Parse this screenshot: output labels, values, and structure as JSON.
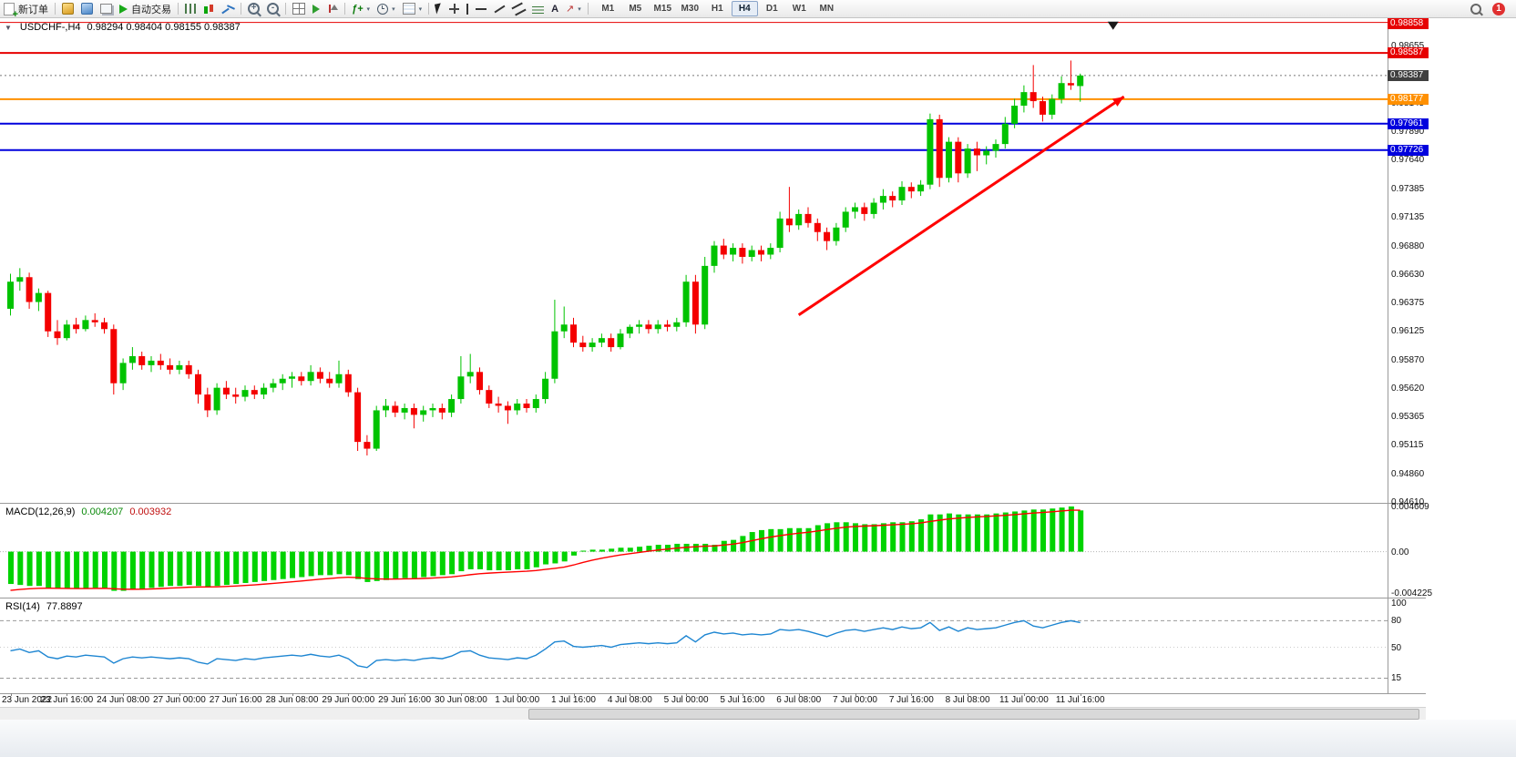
{
  "toolbar": {
    "new_order": "新订单",
    "autotrading": "自动交易",
    "timeframes": [
      "M1",
      "M5",
      "M15",
      "M30",
      "H1",
      "H4",
      "D1",
      "W1",
      "MN"
    ],
    "active_timeframe": "H4",
    "notification_badge": "1"
  },
  "icons": {
    "new-order-icon": "document-plus",
    "new-chart-icon": "gold-chart",
    "profiles-icon": "blue-chart",
    "terminal-icon": "windows",
    "autotrading-play-icon": "green-play-triangle",
    "chart-bars-icon": "vertical-bars",
    "chart-candles-icon": "two-candles",
    "chart-line-icon": "zigzag-line",
    "zoom-in-icon": "magnifier-plus",
    "zoom-out-icon": "magnifier-minus",
    "tile-windows-icon": "grid",
    "auto-scroll-icon": "green-arrow-right",
    "chart-shift-icon": "triangle-with-line",
    "indicators-icon": "fx-plus",
    "periods-icon": "clock",
    "templates-icon": "striped-panel",
    "cursor-icon": "pointer-arrow",
    "crosshair-icon": "cross",
    "vertical-line-icon": "vertical-bar",
    "horizontal-line-icon": "horizontal-bar",
    "trendline-icon": "diagonal-line",
    "channel-icon": "parallel-lines",
    "fibonacci-icon": "stacked-lines",
    "text-icon": "letter-A",
    "arrows-icon": "arrow-glyph",
    "search-icon": "magnifier",
    "notification-icon": "red-circle-badge",
    "one-click-trading-icon": "down-triangle",
    "down-triangle-marker": "black-down-triangle"
  },
  "chart_data": {
    "type": "candlestick",
    "symbol": "USDCHF-",
    "timeframe": "H4",
    "header": {
      "symbol": "USDCHF-,H4",
      "ohlc": "0.98294 0.98404 0.98155 0.98387"
    },
    "current_bar": {
      "open": 0.98294,
      "high": 0.98404,
      "low": 0.98155,
      "close": 0.98387
    },
    "bull_color": "#00c300",
    "bear_color": "#f40000",
    "price_axis": {
      "max": 0.98895,
      "min": 0.946,
      "labels": [
        "0.98655",
        "0.98400",
        "0.98145",
        "0.97890",
        "0.97640",
        "0.97385",
        "0.97135",
        "0.96880",
        "0.96630",
        "0.96375",
        "0.96125",
        "0.95870",
        "0.95620",
        "0.95365",
        "0.95115",
        "0.94860",
        "0.94610"
      ]
    },
    "levels": [
      {
        "price": 0.98858,
        "label": "0.98858",
        "color": "#e60000",
        "width": 1,
        "style": "solid",
        "tag": "#e60000",
        "obj": true
      },
      {
        "price": 0.98587,
        "label": "0.98587",
        "color": "#e60000",
        "width": 2,
        "style": "solid",
        "tag": "#e60000",
        "obj": true
      },
      {
        "price": 0.98387,
        "label": "0.98387",
        "color": "#777777",
        "width": 1,
        "style": "dotted",
        "tag": "#3f3f3f",
        "obj": false
      },
      {
        "price": 0.98177,
        "label": "0.98177",
        "color": "#ff9000",
        "width": 2,
        "style": "solid",
        "tag": "#ff9000",
        "obj": true
      },
      {
        "price": 0.97961,
        "label": "0.97961",
        "color": "#0000dd",
        "width": 2,
        "style": "solid",
        "tag": "#0000dd",
        "obj": true
      },
      {
        "price": 0.97726,
        "label": "0.97726",
        "color": "#0000dd",
        "width": 2,
        "style": "solid",
        "tag": "#0000dd",
        "obj": true
      }
    ],
    "time_labels": [
      "23 Jun 2022",
      "23 Jun 16:00",
      "24 Jun 08:00",
      "27 Jun 00:00",
      "27 Jun 16:00",
      "28 Jun 08:00",
      "29 Jun 00:00",
      "29 Jun 16:00",
      "30 Jun 08:00",
      "1 Jul 00:00",
      "1 Jul 16:00",
      "4 Jul 08:00",
      "5 Jul 00:00",
      "5 Jul 16:00",
      "6 Jul 08:00",
      "7 Jul 00:00",
      "7 Jul 16:00",
      "8 Jul 08:00",
      "11 Jul 00:00",
      "11 Jul 16:00"
    ],
    "bars_per_label": 6,
    "candles": [
      [
        0.9632,
        0.9663,
        0.9626,
        0.9656
      ],
      [
        0.9656,
        0.9668,
        0.9648,
        0.966
      ],
      [
        0.966,
        0.9664,
        0.9632,
        0.9638
      ],
      [
        0.9638,
        0.965,
        0.963,
        0.9646
      ],
      [
        0.9646,
        0.9648,
        0.9607,
        0.9612
      ],
      [
        0.9612,
        0.9622,
        0.96,
        0.9606
      ],
      [
        0.9606,
        0.9622,
        0.9604,
        0.9618
      ],
      [
        0.9618,
        0.9624,
        0.961,
        0.9614
      ],
      [
        0.9614,
        0.9626,
        0.9612,
        0.9622
      ],
      [
        0.9622,
        0.9628,
        0.9616,
        0.962
      ],
      [
        0.962,
        0.9624,
        0.961,
        0.9614
      ],
      [
        0.9614,
        0.9618,
        0.9556,
        0.9566
      ],
      [
        0.9566,
        0.9588,
        0.956,
        0.9584
      ],
      [
        0.9584,
        0.9598,
        0.9578,
        0.959
      ],
      [
        0.959,
        0.9594,
        0.9578,
        0.9582
      ],
      [
        0.9582,
        0.959,
        0.9576,
        0.9586
      ],
      [
        0.9586,
        0.9592,
        0.9578,
        0.9582
      ],
      [
        0.9582,
        0.9588,
        0.9574,
        0.9578
      ],
      [
        0.9578,
        0.9586,
        0.9574,
        0.9582
      ],
      [
        0.9582,
        0.9586,
        0.957,
        0.9574
      ],
      [
        0.9574,
        0.9578,
        0.9548,
        0.9556
      ],
      [
        0.9556,
        0.9562,
        0.9536,
        0.9542
      ],
      [
        0.9542,
        0.9566,
        0.9538,
        0.9562
      ],
      [
        0.9562,
        0.9568,
        0.9552,
        0.9556
      ],
      [
        0.9556,
        0.9562,
        0.9548,
        0.9554
      ],
      [
        0.9554,
        0.9564,
        0.955,
        0.956
      ],
      [
        0.956,
        0.9564,
        0.9552,
        0.9556
      ],
      [
        0.9556,
        0.9566,
        0.9552,
        0.9562
      ],
      [
        0.9562,
        0.957,
        0.9558,
        0.9566
      ],
      [
        0.9566,
        0.9574,
        0.956,
        0.957
      ],
      [
        0.957,
        0.9576,
        0.9562,
        0.9572
      ],
      [
        0.9572,
        0.9576,
        0.9564,
        0.9568
      ],
      [
        0.9568,
        0.9582,
        0.9564,
        0.9576
      ],
      [
        0.9576,
        0.958,
        0.9566,
        0.957
      ],
      [
        0.957,
        0.9576,
        0.9562,
        0.9566
      ],
      [
        0.9566,
        0.9586,
        0.9562,
        0.9574
      ],
      [
        0.9574,
        0.9578,
        0.9554,
        0.9558
      ],
      [
        0.9558,
        0.9562,
        0.9506,
        0.9514
      ],
      [
        0.9514,
        0.952,
        0.9502,
        0.9508
      ],
      [
        0.9508,
        0.9546,
        0.9506,
        0.9542
      ],
      [
        0.9542,
        0.9552,
        0.9536,
        0.9546
      ],
      [
        0.9546,
        0.955,
        0.9536,
        0.954
      ],
      [
        0.954,
        0.9548,
        0.9534,
        0.9544
      ],
      [
        0.9544,
        0.9548,
        0.9526,
        0.9538
      ],
      [
        0.9538,
        0.9546,
        0.9532,
        0.9542
      ],
      [
        0.9542,
        0.9548,
        0.9536,
        0.9544
      ],
      [
        0.9544,
        0.9548,
        0.9534,
        0.954
      ],
      [
        0.954,
        0.9556,
        0.9536,
        0.9552
      ],
      [
        0.9552,
        0.959,
        0.9548,
        0.9572
      ],
      [
        0.9572,
        0.9592,
        0.9566,
        0.9576
      ],
      [
        0.9576,
        0.958,
        0.9556,
        0.956
      ],
      [
        0.956,
        0.9564,
        0.9544,
        0.9548
      ],
      [
        0.9548,
        0.9554,
        0.954,
        0.9546
      ],
      [
        0.9546,
        0.955,
        0.953,
        0.9542
      ],
      [
        0.9542,
        0.9552,
        0.9538,
        0.9548
      ],
      [
        0.9548,
        0.9552,
        0.954,
        0.9544
      ],
      [
        0.9544,
        0.9556,
        0.954,
        0.9552
      ],
      [
        0.9552,
        0.9576,
        0.9548,
        0.957
      ],
      [
        0.957,
        0.964,
        0.9566,
        0.9612
      ],
      [
        0.9612,
        0.9634,
        0.9606,
        0.9618
      ],
      [
        0.9618,
        0.9624,
        0.9598,
        0.9602
      ],
      [
        0.9602,
        0.9608,
        0.9594,
        0.9598
      ],
      [
        0.9598,
        0.9606,
        0.9594,
        0.9602
      ],
      [
        0.9602,
        0.961,
        0.9598,
        0.9606
      ],
      [
        0.9606,
        0.961,
        0.9594,
        0.9598
      ],
      [
        0.9598,
        0.9614,
        0.9596,
        0.961
      ],
      [
        0.961,
        0.9618,
        0.9606,
        0.9616
      ],
      [
        0.9616,
        0.9622,
        0.961,
        0.9618
      ],
      [
        0.9618,
        0.9622,
        0.961,
        0.9614
      ],
      [
        0.9614,
        0.9622,
        0.961,
        0.9618
      ],
      [
        0.9618,
        0.9622,
        0.9612,
        0.9616
      ],
      [
        0.9616,
        0.9624,
        0.9612,
        0.962
      ],
      [
        0.962,
        0.9662,
        0.9616,
        0.9656
      ],
      [
        0.9656,
        0.9662,
        0.961,
        0.9618
      ],
      [
        0.9618,
        0.9678,
        0.9614,
        0.967
      ],
      [
        0.967,
        0.9692,
        0.9664,
        0.9688
      ],
      [
        0.9688,
        0.9694,
        0.9676,
        0.968
      ],
      [
        0.968,
        0.969,
        0.9674,
        0.9686
      ],
      [
        0.9686,
        0.969,
        0.9672,
        0.9678
      ],
      [
        0.9678,
        0.9688,
        0.9674,
        0.9684
      ],
      [
        0.9684,
        0.9688,
        0.9674,
        0.968
      ],
      [
        0.968,
        0.969,
        0.9676,
        0.9686
      ],
      [
        0.9686,
        0.9718,
        0.9682,
        0.9712
      ],
      [
        0.9712,
        0.974,
        0.97,
        0.9706
      ],
      [
        0.9706,
        0.972,
        0.9702,
        0.9716
      ],
      [
        0.9716,
        0.9722,
        0.9704,
        0.9708
      ],
      [
        0.9708,
        0.9712,
        0.9692,
        0.97
      ],
      [
        0.97,
        0.9704,
        0.9684,
        0.9692
      ],
      [
        0.9692,
        0.9708,
        0.9688,
        0.9704
      ],
      [
        0.9704,
        0.9722,
        0.97,
        0.9718
      ],
      [
        0.9718,
        0.9726,
        0.9712,
        0.9722
      ],
      [
        0.9722,
        0.9726,
        0.971,
        0.9716
      ],
      [
        0.9716,
        0.973,
        0.9712,
        0.9726
      ],
      [
        0.9726,
        0.9738,
        0.972,
        0.9732
      ],
      [
        0.9732,
        0.9736,
        0.9722,
        0.9728
      ],
      [
        0.9728,
        0.9745,
        0.9724,
        0.974
      ],
      [
        0.974,
        0.9744,
        0.973,
        0.9736
      ],
      [
        0.9736,
        0.9746,
        0.9732,
        0.9742
      ],
      [
        0.9742,
        0.9805,
        0.9738,
        0.98
      ],
      [
        0.98,
        0.9804,
        0.974,
        0.9748
      ],
      [
        0.9748,
        0.9784,
        0.9744,
        0.978
      ],
      [
        0.978,
        0.9784,
        0.9744,
        0.9752
      ],
      [
        0.9752,
        0.9778,
        0.9748,
        0.9774
      ],
      [
        0.9774,
        0.978,
        0.9754,
        0.9768
      ],
      [
        0.9768,
        0.9776,
        0.976,
        0.9772
      ],
      [
        0.9772,
        0.9782,
        0.9766,
        0.9778
      ],
      [
        0.9778,
        0.9802,
        0.9774,
        0.9796
      ],
      [
        0.9796,
        0.9818,
        0.9792,
        0.9812
      ],
      [
        0.9812,
        0.983,
        0.9806,
        0.9824
      ],
      [
        0.9824,
        0.9848,
        0.981,
        0.9816
      ],
      [
        0.9816,
        0.982,
        0.9798,
        0.9804
      ],
      [
        0.9804,
        0.9822,
        0.98,
        0.9818
      ],
      [
        0.9818,
        0.9838,
        0.9814,
        0.9832
      ],
      [
        0.9832,
        0.9852,
        0.9826,
        0.983
      ],
      [
        0.98294,
        0.98404,
        0.98155,
        0.98387
      ]
    ],
    "macd": {
      "label": "MACD(12,26,9)",
      "main_value": "0.004207",
      "signal_value": "0.003932",
      "scale_max": 0.004609,
      "scale_min": -0.004225,
      "axis_labels": [
        {
          "text": "0.004609",
          "v": 0.004609
        },
        {
          "text": "0.00",
          "v": 0
        },
        {
          "text": "-0.004225",
          "v": -0.004225
        }
      ],
      "hist_color": "#00d300",
      "signal_color": "#ff0000",
      "histogram": [
        -0.0033,
        -0.0034,
        -0.0035,
        -0.0035,
        -0.0037,
        -0.0038,
        -0.0038,
        -0.0038,
        -0.0038,
        -0.0037,
        -0.0037,
        -0.004,
        -0.004,
        -0.0039,
        -0.0038,
        -0.0037,
        -0.0036,
        -0.0035,
        -0.0035,
        -0.0034,
        -0.0035,
        -0.0036,
        -0.0035,
        -0.0034,
        -0.0033,
        -0.0032,
        -0.0031,
        -0.003,
        -0.0029,
        -0.0028,
        -0.0027,
        -0.0026,
        -0.0025,
        -0.0024,
        -0.0024,
        -0.0023,
        -0.0024,
        -0.0028,
        -0.0031,
        -0.003,
        -0.0029,
        -0.0028,
        -0.0027,
        -0.0027,
        -0.0026,
        -0.0025,
        -0.0024,
        -0.0023,
        -0.002,
        -0.0018,
        -0.0018,
        -0.0019,
        -0.0019,
        -0.0019,
        -0.0018,
        -0.0018,
        -0.0016,
        -0.0013,
        -0.0012,
        -0.001,
        -0.0004,
        0.0001,
        0.0002,
        0.0002,
        0.0003,
        0.0004,
        0.0004,
        0.0005,
        0.0006,
        0.0007,
        0.0007,
        0.0008,
        0.0008,
        0.0008,
        0.0008,
        0.0007,
        0.0011,
        0.0012,
        0.0016,
        0.002,
        0.0022,
        0.0023,
        0.0023,
        0.0024,
        0.0024,
        0.0024,
        0.0027,
        0.0029,
        0.003,
        0.003,
        0.0029,
        0.0028,
        0.0028,
        0.0029,
        0.003,
        0.003,
        0.0031,
        0.0033,
        0.0038,
        0.0038,
        0.0039,
        0.0038,
        0.0038,
        0.0038,
        0.0038,
        0.0039,
        0.004,
        0.0041,
        0.0042,
        0.0043,
        0.0043,
        0.0044,
        0.0045,
        0.00461,
        0.004207
      ]
    },
    "rsi": {
      "label": "RSI(14)",
      "value": "77.8897",
      "axis_labels": [
        {
          "text": "100",
          "v": 100
        },
        {
          "text": "80",
          "v": 80
        },
        {
          "text": "50",
          "v": 50
        },
        {
          "text": "15",
          "v": 15
        }
      ],
      "dashed_levels": [
        80,
        15
      ],
      "dotted_levels": [
        50
      ],
      "line_color": "#1e86d2",
      "values": [
        46,
        48,
        44,
        46,
        39,
        37,
        40,
        39,
        41,
        40,
        39,
        32,
        37,
        39,
        38,
        39,
        38,
        37,
        38,
        37,
        33,
        31,
        37,
        36,
        35,
        37,
        36,
        38,
        39,
        40,
        41,
        40,
        42,
        40,
        39,
        41,
        37,
        29,
        27,
        35,
        36,
        35,
        36,
        35,
        37,
        38,
        37,
        40,
        45,
        46,
        41,
        38,
        37,
        36,
        38,
        37,
        41,
        48,
        56,
        57,
        51,
        50,
        51,
        52,
        50,
        53,
        54,
        55,
        54,
        55,
        54,
        55,
        63,
        56,
        64,
        67,
        65,
        66,
        64,
        65,
        64,
        65,
        70,
        69,
        70,
        68,
        65,
        62,
        66,
        69,
        70,
        68,
        70,
        72,
        70,
        73,
        71,
        72,
        78,
        69,
        73,
        68,
        72,
        70,
        71,
        72,
        75,
        78,
        80,
        74,
        72,
        75,
        78,
        80,
        77.89
      ]
    },
    "trend_arrow": {
      "from_bar": 84,
      "from_price": 0.96265,
      "to_bar": 119,
      "to_price": 0.982,
      "color": "#ff0000"
    },
    "marker_triangle": {
      "bar": 117.5,
      "price": 0.98865
    }
  }
}
